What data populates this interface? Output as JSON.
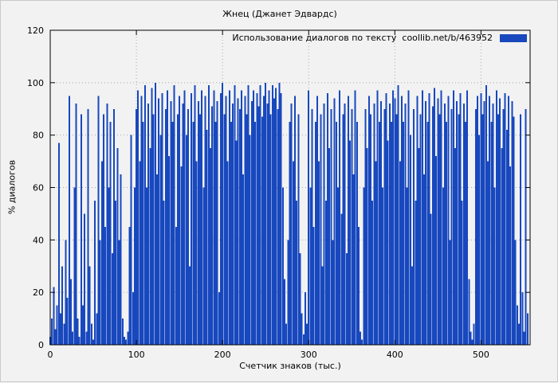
{
  "chart_data": {
    "type": "bar",
    "title": "Жнец (Джанет Эдвардс)",
    "xlabel": "Счетчик знаков (тыс.)",
    "ylabel": "% диалогов",
    "legend": "Использование диалогов по тексту  coollib.net/b/463952",
    "legend_position": "top-right-inside",
    "xlim": [
      0,
      557
    ],
    "ylim": [
      0,
      120
    ],
    "xticks": [
      0,
      100,
      200,
      300,
      400,
      500
    ],
    "yticks": [
      0,
      20,
      40,
      60,
      80,
      100,
      120
    ],
    "grid": true,
    "bar_color": "#1848be",
    "background_color": "#f2f2f2",
    "x_step": 2,
    "values": [
      3,
      10,
      22,
      6,
      15,
      77,
      12,
      30,
      8,
      40,
      18,
      95,
      25,
      5,
      60,
      92,
      10,
      3,
      88,
      15,
      50,
      5,
      90,
      30,
      8,
      2,
      55,
      12,
      95,
      40,
      70,
      88,
      45,
      92,
      60,
      85,
      35,
      90,
      55,
      75,
      40,
      65,
      10,
      3,
      2,
      5,
      45,
      80,
      20,
      60,
      90,
      97,
      70,
      95,
      85,
      99,
      60,
      92,
      75,
      98,
      88,
      100,
      65,
      94,
      80,
      96,
      55,
      90,
      97,
      72,
      93,
      85,
      99,
      45,
      88,
      95,
      68,
      92,
      97,
      80,
      90,
      30,
      96,
      85,
      99,
      70,
      93,
      88,
      97,
      60,
      95,
      82,
      99,
      75,
      91,
      97,
      85,
      93,
      20,
      96,
      100,
      88,
      95,
      70,
      97,
      85,
      92,
      99,
      78,
      94,
      90,
      97,
      65,
      95,
      88,
      99,
      80,
      93,
      97,
      85,
      96,
      91,
      99,
      87,
      95,
      100,
      92,
      97,
      88,
      99,
      94,
      98,
      90,
      100,
      96,
      60,
      25,
      8,
      40,
      85,
      92,
      70,
      95,
      55,
      88,
      35,
      12,
      4,
      20,
      8,
      97,
      60,
      90,
      45,
      85,
      95,
      70,
      88,
      30,
      92,
      55,
      96,
      75,
      90,
      40,
      94,
      85,
      60,
      97,
      50,
      88,
      92,
      35,
      95,
      78,
      90,
      65,
      97,
      85,
      45,
      5,
      2,
      60,
      90,
      75,
      95,
      88,
      55,
      92,
      70,
      97,
      85,
      93,
      60,
      90,
      96,
      78,
      92,
      85,
      97,
      94,
      88,
      99,
      70,
      95,
      85,
      92,
      60,
      97,
      80,
      30,
      90,
      55,
      95,
      75,
      88,
      97,
      65,
      93,
      85,
      96,
      50,
      91,
      98,
      72,
      94,
      88,
      97,
      60,
      92,
      85,
      95,
      40,
      90,
      97,
      75,
      93,
      88,
      96,
      55,
      92,
      85,
      97,
      25,
      5,
      2,
      8,
      90,
      95,
      80,
      96,
      88,
      93,
      99,
      70,
      95,
      85,
      92,
      60,
      97,
      88,
      94,
      75,
      90,
      96,
      82,
      95,
      68,
      93,
      87,
      40,
      15,
      8,
      88,
      20,
      5,
      90,
      12
    ]
  }
}
